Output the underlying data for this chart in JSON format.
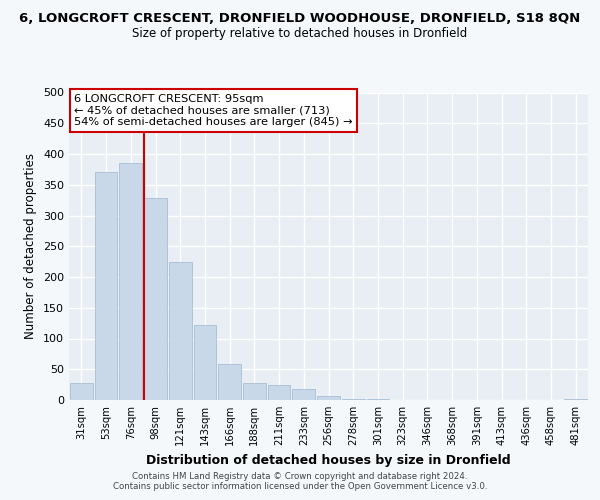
{
  "title": "6, LONGCROFT CRESCENT, DRONFIELD WOODHOUSE, DRONFIELD, S18 8QN",
  "subtitle": "Size of property relative to detached houses in Dronfield",
  "xlabel": "Distribution of detached houses by size in Dronfield",
  "ylabel": "Number of detached properties",
  "bar_color": "#c8d8e8",
  "bar_edge_color": "#a0b8d0",
  "bins": [
    "31sqm",
    "53sqm",
    "76sqm",
    "98sqm",
    "121sqm",
    "143sqm",
    "166sqm",
    "188sqm",
    "211sqm",
    "233sqm",
    "256sqm",
    "278sqm",
    "301sqm",
    "323sqm",
    "346sqm",
    "368sqm",
    "391sqm",
    "413sqm",
    "436sqm",
    "458sqm",
    "481sqm"
  ],
  "values": [
    28,
    370,
    385,
    328,
    225,
    122,
    58,
    28,
    24,
    18,
    6,
    1,
    1,
    0,
    0,
    0,
    0,
    0,
    0,
    0,
    2
  ],
  "ylim": [
    0,
    500
  ],
  "yticks": [
    0,
    50,
    100,
    150,
    200,
    250,
    300,
    350,
    400,
    450,
    500
  ],
  "vline_color": "#cc0000",
  "vline_bin_index": 3,
  "annotation_text": "6 LONGCROFT CRESCENT: 95sqm\n← 45% of detached houses are smaller (713)\n54% of semi-detached houses are larger (845) →",
  "annotation_box_color": "#ffffff",
  "annotation_box_edge": "#cc0000",
  "footer_line1": "Contains HM Land Registry data © Crown copyright and database right 2024.",
  "footer_line2": "Contains public sector information licensed under the Open Government Licence v3.0.",
  "plot_bg_color": "#e8eef4",
  "fig_bg_color": "#f5f8fb",
  "grid_color": "#ffffff"
}
